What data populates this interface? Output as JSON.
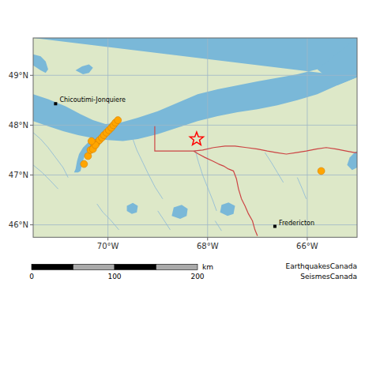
{
  "chart_data": {
    "type": "scatter",
    "xlim": [
      -71.5,
      -65.0
    ],
    "ylim": [
      45.75,
      49.75
    ],
    "xticks": [
      {
        "value": -70,
        "label": "70°W"
      },
      {
        "value": -68,
        "label": "68°W"
      },
      {
        "value": -66,
        "label": "66°W"
      }
    ],
    "yticks": [
      {
        "value": 46,
        "label": "46°N"
      },
      {
        "value": 47,
        "label": "47°N"
      },
      {
        "value": 48,
        "label": "48°N"
      },
      {
        "value": 49,
        "label": "49°N"
      }
    ],
    "grid": true,
    "grid_color": "#a0b8c8",
    "background_color": "#dde8c8",
    "series": [
      {
        "type": "area",
        "color": "#7ab8d8",
        "x": [
          -71.5,
          -71.2,
          -70.85,
          -70.55,
          -70.3,
          -70.05,
          -69.75,
          -69.4,
          -69.0,
          -68.6,
          -68.2,
          -67.8,
          -67.4,
          -67.0,
          -66.6,
          -66.2,
          -65.8,
          -65.4,
          -65.0,
          -65.0,
          -71.5,
          -65.0,
          -65.4,
          -65.8,
          -66.2,
          -66.6,
          -67.0,
          -67.4,
          -67.8,
          -68.2,
          -68.6,
          -69.0,
          -69.4,
          -69.7,
          -70.0,
          -70.3,
          -70.6,
          -70.9,
          -71.2,
          -71.5,
          null,
          -69.72,
          -69.9,
          -70.08,
          -70.22,
          -70.32,
          -70.4,
          -70.48,
          -70.52,
          -70.55,
          -70.6,
          -70.68,
          -70.65,
          -70.62,
          -70.58,
          -70.5,
          -70.4,
          -70.3,
          -70.18,
          -70.02,
          -69.85,
          null,
          -71.5,
          -71.35,
          -71.25,
          -71.2,
          -71.25,
          -71.35,
          -71.5,
          null,
          -70.65,
          -70.5,
          -70.38,
          -70.3,
          -70.38,
          -70.52,
          null,
          -65.0,
          -65.0,
          -65.8,
          -65.4,
          null,
          -65.0,
          -65.1,
          -65.2,
          -65.15,
          -65.05,
          -65.0,
          null,
          -69.62,
          -69.52,
          -69.42,
          -69.4,
          -69.5,
          -69.62,
          null,
          -68.72,
          -68.55,
          -68.42,
          -68.4,
          -68.52,
          -68.68,
          null,
          -67.75,
          -67.6,
          -67.48,
          -67.45,
          -67.58,
          -67.72
        ],
        "values": [
          48.62,
          48.52,
          48.38,
          48.22,
          48.1,
          48.02,
          48.05,
          48.15,
          48.28,
          48.45,
          48.62,
          48.72,
          48.8,
          48.88,
          48.95,
          49.02,
          49.12,
          49.25,
          49.42,
          49.75,
          49.75,
          48.96,
          48.8,
          48.62,
          48.5,
          48.4,
          48.32,
          48.26,
          48.18,
          48.08,
          47.95,
          47.82,
          47.72,
          47.68,
          47.7,
          47.74,
          47.8,
          47.88,
          47.98,
          48.08,
          null,
          48.02,
          47.9,
          47.78,
          47.68,
          47.58,
          47.48,
          47.35,
          47.22,
          47.08,
          47.05,
          47.05,
          47.12,
          47.28,
          47.42,
          47.55,
          47.65,
          47.75,
          47.85,
          47.98,
          48.1,
          null,
          49.2,
          49.1,
          49.05,
          49.12,
          49.28,
          49.38,
          49.42,
          null,
          49.1,
          49.02,
          49.05,
          49.15,
          49.22,
          49.18,
          null,
          48.96,
          49.75,
          49.12,
          48.8,
          null,
          47.15,
          47.1,
          47.2,
          47.35,
          47.45,
          47.48,
          null,
          46.28,
          46.22,
          46.25,
          46.38,
          46.44,
          46.38,
          null,
          46.18,
          46.12,
          46.18,
          46.32,
          46.4,
          46.35,
          null,
          46.25,
          46.18,
          46.22,
          46.38,
          46.45,
          46.4
        ]
      },
      {
        "type": "line",
        "color": "#8ab8d8",
        "x": [
          -71.5,
          -71.35,
          -71.2,
          -71.05,
          -70.9,
          -70.8,
          null,
          -71.5,
          -71.32,
          -71.15,
          -71.0,
          null,
          -69.5,
          -69.42,
          -69.3,
          -69.18,
          -69.05,
          -68.9,
          null,
          -68.25,
          -68.18,
          -68.1,
          -68.0,
          -67.9,
          -67.82,
          null,
          -66.85,
          -66.72,
          -66.6,
          -66.48,
          null,
          -66.2,
          -66.1,
          -66.02,
          null,
          -70.22,
          -70.1,
          -69.95,
          -69.78,
          null,
          -69.0,
          -68.88,
          -68.75,
          null,
          -67.85,
          -67.72
        ],
        "values": [
          47.85,
          47.72,
          47.55,
          47.35,
          47.15,
          46.95,
          null,
          47.2,
          47.05,
          46.88,
          46.72,
          null,
          47.72,
          47.5,
          47.25,
          47.0,
          46.75,
          46.52,
          null,
          47.5,
          47.25,
          47.0,
          46.75,
          46.5,
          46.28,
          null,
          47.45,
          47.25,
          47.05,
          46.85,
          null,
          46.95,
          46.72,
          46.52,
          null,
          46.42,
          46.25,
          46.1,
          45.9,
          null,
          46.28,
          46.1,
          45.9,
          null,
          46.08,
          45.88
        ]
      },
      {
        "type": "line",
        "color": "#cc4444",
        "x": [
          -69.06,
          -69.06,
          -69.06,
          -69.06,
          -69.06,
          -68.92,
          -68.72,
          -68.5,
          -68.28,
          null,
          -68.28,
          -68.18,
          -68.05,
          -67.9,
          -67.78,
          -67.68,
          -67.58,
          -67.48,
          -67.45,
          -67.42,
          -67.4,
          -67.38,
          -67.35,
          -67.32,
          null,
          -68.28,
          -68.1,
          -67.88,
          -67.65,
          -67.45,
          -67.22,
          -67.0,
          -66.8,
          -66.62,
          -66.42,
          -66.22,
          -66.02,
          -65.82,
          -65.62,
          -65.42,
          -65.22,
          -65.05,
          -65.0,
          null,
          -67.32,
          -67.25,
          -67.18,
          -67.1,
          -67.05,
          -67.0
        ],
        "values": [
          47.98,
          47.72,
          47.62,
          47.52,
          47.48,
          47.48,
          47.48,
          47.48,
          47.48,
          null,
          47.48,
          47.42,
          47.35,
          47.28,
          47.22,
          47.18,
          47.12,
          47.08,
          47.0,
          46.92,
          46.82,
          46.72,
          46.62,
          46.52,
          null,
          47.48,
          47.5,
          47.55,
          47.58,
          47.58,
          47.55,
          47.52,
          47.48,
          47.45,
          47.42,
          47.45,
          47.48,
          47.52,
          47.55,
          47.52,
          47.48,
          47.45,
          47.45,
          null,
          46.52,
          46.38,
          46.22,
          46.08,
          45.9,
          45.78
        ]
      },
      {
        "type": "scatter",
        "marker": "circle",
        "color": "#FFA500",
        "x": [
          -70.48,
          -70.4,
          -70.35,
          -70.28,
          -70.22,
          -70.17,
          -70.12,
          -70.08,
          -70.03,
          -69.98,
          -69.93,
          -69.89,
          -69.85,
          -69.8,
          -70.3,
          -70.25,
          -70.33,
          -65.72
        ],
        "values": [
          47.22,
          47.38,
          47.5,
          47.58,
          47.65,
          47.7,
          47.75,
          47.8,
          47.85,
          47.9,
          47.95,
          48.0,
          48.05,
          48.1,
          47.52,
          47.6,
          47.68,
          47.08
        ]
      },
      {
        "type": "scatter",
        "marker": "star",
        "color": "red",
        "x": [
          -68.22
        ],
        "values": [
          47.72
        ]
      }
    ],
    "annotations": [
      {
        "text": "Chicoutimi-Jonquiere",
        "x": -71.05,
        "y": 48.43
      },
      {
        "text": "Fredericton",
        "x": -66.65,
        "y": 45.97
      }
    ],
    "scale_bar": {
      "ticks": [
        0,
        100,
        200
      ],
      "unit": "km"
    },
    "attribution": [
      "EarthquakesCanada",
      "SeismesCanada"
    ]
  }
}
